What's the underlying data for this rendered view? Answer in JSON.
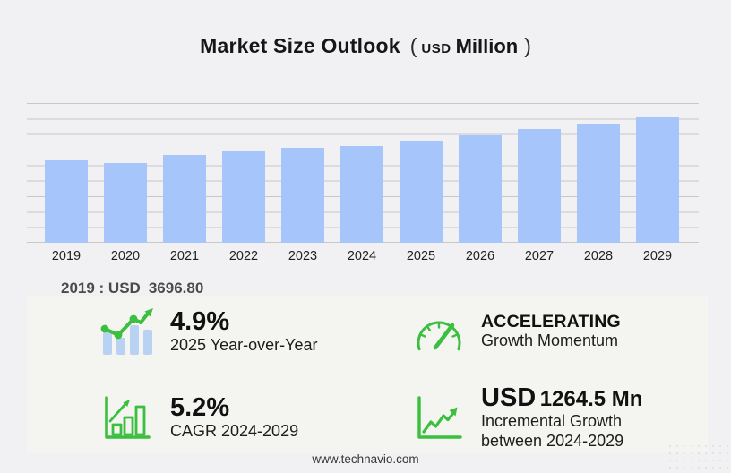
{
  "header": {
    "title": "Market Size Outlook",
    "paren_open": "(",
    "currency": "USD",
    "unit": "Million",
    "paren_close": ")"
  },
  "chart_data": {
    "type": "bar",
    "title": "Market Size Outlook (USD Million)",
    "categories": [
      "2019",
      "2020",
      "2021",
      "2022",
      "2023",
      "2024",
      "2025",
      "2026",
      "2027",
      "2028",
      "2029"
    ],
    "values": [
      3696.8,
      3615,
      3960,
      4105,
      4300,
      4378,
      4592.6,
      4845,
      5110,
      5365,
      5642.6
    ],
    "labeled_point": {
      "year": "2019",
      "value": "3696.80",
      "currency": "USD"
    },
    "xlabel": "",
    "ylabel": "USD Million",
    "ylim": [
      0,
      6300
    ],
    "grid": "horizontal",
    "gridline_count": 10,
    "legend": "none",
    "bar_color": "#a6c5fb"
  },
  "annotation": {
    "label": "2019 : USD",
    "value": "3696.80"
  },
  "stats": [
    {
      "icon": "growth-bars-trend-icon",
      "value": "4.9%",
      "label": "2025 Year-over-Year"
    },
    {
      "icon": "speedometer-icon",
      "value": "ACCELERATING",
      "label": "Growth Momentum"
    },
    {
      "icon": "bar-chart-arrow-icon",
      "value": "5.2%",
      "label": "CAGR 2024-2029"
    },
    {
      "icon": "line-graph-arrow-icon",
      "value_prefix": "USD",
      "value": "1264.5 Mn",
      "label": "Incremental Growth",
      "label2": "between 2024-2029"
    }
  ],
  "footer": {
    "url": "www.technavio.com"
  },
  "colors": {
    "background": "#f1f1f3",
    "panel": "#f4f4f1",
    "bar_blue": "#a6c5fb",
    "icon_bar_blue": "#b9d2f3",
    "accent_green": "#3bbf3e",
    "grid_line": "#c8c8ca",
    "annotation_gray": "#4a4a4a"
  }
}
